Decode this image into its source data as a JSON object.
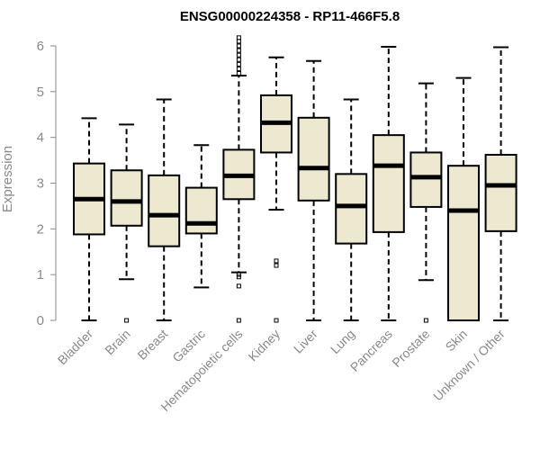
{
  "chart_data": {
    "type": "boxplot",
    "title": "ENSG00000224358 - RP11-466F5.8",
    "ylabel": "Expression",
    "xlabel": "",
    "ylim": [
      0,
      6.2
    ],
    "yticks": [
      0,
      1,
      2,
      3,
      4,
      5,
      6
    ],
    "grid": false,
    "box_fill": "#ede8d0",
    "box_stroke": "#000000",
    "categories": [
      "Bladder",
      "Brain",
      "Breast",
      "Gastric",
      "Hematopoietic cells",
      "Kidney",
      "Liver",
      "Lung",
      "Pancreas",
      "Prostate",
      "Skin",
      "Unknown / Other"
    ],
    "boxes": [
      {
        "label": "Bladder",
        "whisker_low": 0,
        "q1": 1.88,
        "median": 2.65,
        "q3": 3.43,
        "whisker_high": 4.42,
        "outliers": []
      },
      {
        "label": "Brain",
        "whisker_low": 0.9,
        "q1": 2.07,
        "median": 2.6,
        "q3": 3.28,
        "whisker_high": 4.28,
        "outliers": [
          0
        ]
      },
      {
        "label": "Breast",
        "whisker_low": 0,
        "q1": 1.62,
        "median": 2.3,
        "q3": 3.17,
        "whisker_high": 4.83,
        "outliers": []
      },
      {
        "label": "Gastric",
        "whisker_low": 0.72,
        "q1": 1.9,
        "median": 2.12,
        "q3": 2.9,
        "whisker_high": 3.83,
        "outliers": []
      },
      {
        "label": "Hematopoietic cells",
        "whisker_low": 1.05,
        "q1": 2.65,
        "median": 3.16,
        "q3": 3.73,
        "whisker_high": 5.35,
        "outliers": [
          0,
          0.75,
          0.95,
          1.0,
          5.4,
          5.5,
          5.6,
          5.7,
          5.8,
          5.9,
          6.0,
          6.1,
          6.18
        ]
      },
      {
        "label": "Kidney",
        "whisker_low": 2.42,
        "q1": 3.67,
        "median": 4.32,
        "q3": 4.92,
        "whisker_high": 5.75,
        "outliers": [
          0,
          1.2,
          1.3
        ]
      },
      {
        "label": "Liver",
        "whisker_low": 0,
        "q1": 2.62,
        "median": 3.33,
        "q3": 4.43,
        "whisker_high": 5.67,
        "outliers": []
      },
      {
        "label": "Lung",
        "whisker_low": 0,
        "q1": 1.68,
        "median": 2.5,
        "q3": 3.2,
        "whisker_high": 4.83,
        "outliers": []
      },
      {
        "label": "Pancreas",
        "whisker_low": 0,
        "q1": 1.93,
        "median": 3.38,
        "q3": 4.05,
        "whisker_high": 5.98,
        "outliers": []
      },
      {
        "label": "Prostate",
        "whisker_low": 0.88,
        "q1": 2.48,
        "median": 3.13,
        "q3": 3.67,
        "whisker_high": 5.18,
        "outliers": [
          0
        ]
      },
      {
        "label": "Skin",
        "whisker_low": 0,
        "q1": 0,
        "median": 2.4,
        "q3": 3.38,
        "whisker_high": 5.3,
        "outliers": []
      },
      {
        "label": "Unknown / Other",
        "whisker_low": 0,
        "q1": 1.95,
        "median": 2.95,
        "q3": 3.62,
        "whisker_high": 5.97,
        "outliers": []
      }
    ]
  }
}
